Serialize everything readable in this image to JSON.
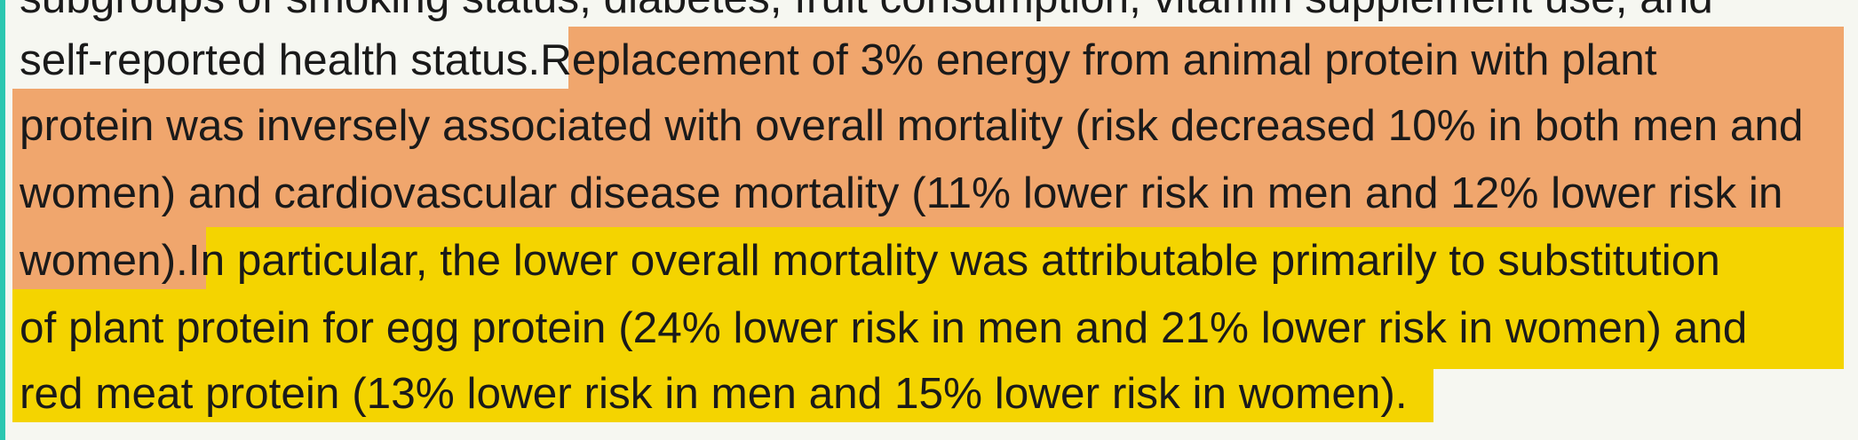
{
  "text": {
    "cut_line": "subgroups of smoking status, diabetes, fruit consumption, vitamin supplement use, and",
    "line1_plain": "self-reported health status. ",
    "line1_orange": "Replacement of 3% energy from animal protein with plant",
    "line2_orange": "protein was inversely associated with overall mortality (risk decreased 10% in both men and",
    "line3_orange": "women) and cardiovascular disease mortality (11% lower risk in men and 12% lower risk in",
    "line4_orange": "women). ",
    "line4_yellow": "In particular, the lower overall mortality was attributable primarily to substitution",
    "line5_yellow": "of plant protein for egg protein (24% lower risk in men and 21% lower risk in women) and",
    "line6_yellow": "red meat protein (13% lower risk in men and 15% lower risk in women)."
  },
  "colors": {
    "background": "#f6f7f1",
    "accent": "#2bc7b0",
    "highlight_orange": "#f0a66d",
    "highlight_yellow": "#f4d400",
    "text": "#1a1a1a"
  }
}
